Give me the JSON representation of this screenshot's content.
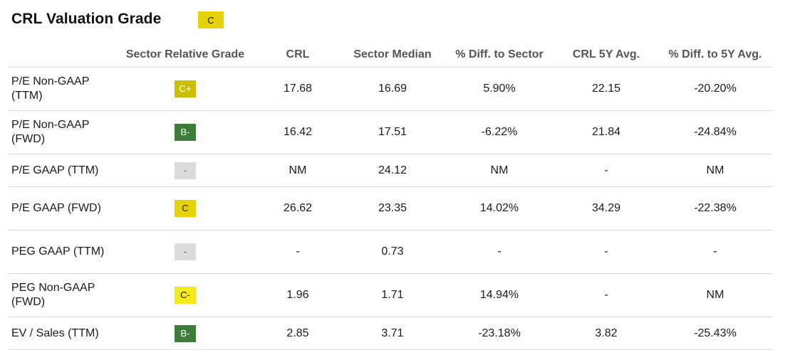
{
  "title": "CRL Valuation Grade",
  "overall_grade": {
    "label": "C",
    "bg": "#e6d200",
    "fg": "#222222"
  },
  "headers": [
    "",
    "Sector Relative Grade",
    "CRL",
    "Sector Median",
    "% Diff. to Sector",
    "CRL 5Y Avg.",
    "% Diff. to 5Y Avg."
  ],
  "grade_styles": {
    "C+": {
      "bg": "#cbbd00",
      "fg": "#ffffff"
    },
    "B-": {
      "bg": "#3e7c3a",
      "fg": "#ffffff"
    },
    "-": {
      "bg": "#dcdcdc",
      "fg": "#555555"
    },
    "C": {
      "bg": "#e6d200",
      "fg": "#222222"
    },
    "C-": {
      "bg": "#f4e919",
      "fg": "#222222"
    }
  },
  "rows": [
    {
      "metric": "P/E Non-GAAP (TTM)",
      "grade": "C+",
      "crl": "17.68",
      "median": "16.69",
      "diff_sector": "5.90%",
      "avg5y": "22.15",
      "diff_5y": "-20.20%",
      "height": "tall"
    },
    {
      "metric": "P/E Non-GAAP (FWD)",
      "grade": "B-",
      "crl": "16.42",
      "median": "17.51",
      "diff_sector": "-6.22%",
      "avg5y": "21.84",
      "diff_5y": "-24.84%",
      "height": "tall"
    },
    {
      "metric": "P/E GAAP (TTM)",
      "grade": "-",
      "crl": "NM",
      "median": "24.12",
      "diff_sector": "NM",
      "avg5y": "-",
      "diff_5y": "NM",
      "height": "short"
    },
    {
      "metric": "P/E GAAP (FWD)",
      "grade": "C",
      "crl": "26.62",
      "median": "23.35",
      "diff_sector": "14.02%",
      "avg5y": "34.29",
      "diff_5y": "-22.38%",
      "height": "tall"
    },
    {
      "metric": "PEG GAAP (TTM)",
      "grade": "-",
      "crl": "-",
      "median": "0.73",
      "diff_sector": "-",
      "avg5y": "-",
      "diff_5y": "-",
      "height": "tall"
    },
    {
      "metric": "PEG Non-GAAP (FWD)",
      "grade": "C-",
      "crl": "1.96",
      "median": "1.71",
      "diff_sector": "14.94%",
      "avg5y": "-",
      "diff_5y": "NM",
      "height": "tall"
    },
    {
      "metric": "EV / Sales (TTM)",
      "grade": "B-",
      "crl": "2.85",
      "median": "3.71",
      "diff_sector": "-23.18%",
      "avg5y": "3.82",
      "diff_5y": "-25.43%",
      "height": "short"
    }
  ]
}
